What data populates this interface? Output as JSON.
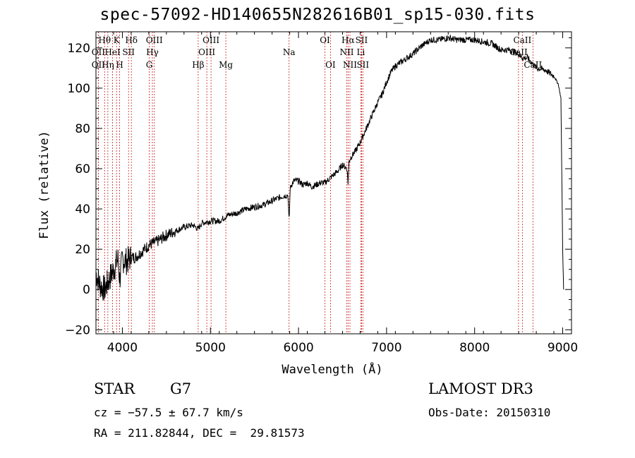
{
  "chart_data": {
    "type": "line",
    "title": "spec-57092-HD140655N282616B01_sp15-030.fits",
    "xlabel": "Wavelength (Å)",
    "ylabel": "Flux (relative)",
    "xlim": [
      3700,
      9100
    ],
    "ylim": [
      -22,
      128
    ],
    "xticks": [
      4000,
      5000,
      6000,
      7000,
      8000,
      9000
    ],
    "yticks": [
      -20,
      0,
      20,
      40,
      60,
      80,
      100,
      120
    ],
    "grid": false,
    "series": [
      {
        "name": "flux",
        "x": [
          3700,
          3750,
          3800,
          3850,
          3900,
          3950,
          3970,
          4000,
          4050,
          4100,
          4150,
          4200,
          4300,
          4400,
          4500,
          4600,
          4700,
          4800,
          4861,
          4900,
          5000,
          5100,
          5200,
          5300,
          5400,
          5500,
          5600,
          5700,
          5800,
          5880,
          5890,
          5896,
          5905,
          5920,
          5950,
          6000,
          6050,
          6100,
          6150,
          6200,
          6250,
          6300,
          6350,
          6400,
          6450,
          6500,
          6550,
          6563,
          6575,
          6600,
          6650,
          6700,
          6750,
          6800,
          6850,
          6900,
          6950,
          7000,
          7050,
          7100,
          7200,
          7300,
          7400,
          7500,
          7600,
          7700,
          7800,
          7900,
          8000,
          8100,
          8200,
          8300,
          8400,
          8500,
          8542,
          8600,
          8662,
          8700,
          8800,
          8900,
          8950,
          8980,
          9000,
          9010
        ],
        "y": [
          8,
          2,
          0,
          5,
          10,
          15,
          5,
          15,
          14,
          16,
          16,
          18,
          22,
          24,
          27,
          29,
          31,
          32,
          30,
          33,
          34,
          34,
          37,
          38,
          40,
          41,
          42,
          44,
          46,
          47,
          36,
          37,
          50,
          52,
          54,
          54,
          52,
          53,
          51,
          52,
          53,
          53,
          55,
          57,
          59,
          62,
          60,
          53,
          64,
          66,
          69,
          73,
          78,
          83,
          88,
          93,
          97,
          103,
          108,
          111,
          114,
          117,
          121,
          124,
          124,
          125,
          124,
          124,
          124,
          123,
          122,
          119,
          119,
          117,
          115,
          115,
          112,
          110,
          109,
          106,
          102,
          95,
          20,
          0
        ]
      }
    ],
    "lines": [
      {
        "name": "Hθ",
        "x": 3798,
        "row": 1
      },
      {
        "name": "OII",
        "x": 3727,
        "row": 2
      },
      {
        "name": "OII",
        "x": 3727,
        "row": 3
      },
      {
        "name": "K",
        "x": 3934,
        "row": 1
      },
      {
        "name": "HeI",
        "x": 3889,
        "row": 2
      },
      {
        "name": "Hη",
        "x": 3835,
        "row": 3
      },
      {
        "name": "Hδ",
        "x": 4102,
        "row": 1
      },
      {
        "name": "SII",
        "x": 4070,
        "row": 2
      },
      {
        "name": "H",
        "x": 3969,
        "row": 3
      },
      {
        "name": "OIII",
        "x": 4363,
        "row": 1
      },
      {
        "name": "Hγ",
        "x": 4341,
        "row": 2
      },
      {
        "name": "G",
        "x": 4305,
        "row": 3
      },
      {
        "name": "OIII",
        "x": 5007,
        "row": 1
      },
      {
        "name": "OIII",
        "x": 4959,
        "row": 2
      },
      {
        "name": "Hβ",
        "x": 4861,
        "row": 3
      },
      {
        "name": "Mg",
        "x": 5175,
        "row": 3
      },
      {
        "name": "Na",
        "x": 5893,
        "row": 2
      },
      {
        "name": "OI",
        "x": 6300,
        "row": 1
      },
      {
        "name": "OI",
        "x": 6363,
        "row": 3
      },
      {
        "name": "Hα",
        "x": 6563,
        "row": 1
      },
      {
        "name": "SII",
        "x": 6716,
        "row": 1
      },
      {
        "name": "NII",
        "x": 6548,
        "row": 2
      },
      {
        "name": "Li",
        "x": 6708,
        "row": 2
      },
      {
        "name": "NII",
        "x": 6584,
        "row": 3
      },
      {
        "name": "SII",
        "x": 6731,
        "row": 3
      },
      {
        "name": "CaII",
        "x": 8542,
        "row": 1
      },
      {
        "name": "CaII",
        "x": 8498,
        "row": 2
      },
      {
        "name": "CaII",
        "x": 8662,
        "row": 3
      }
    ]
  },
  "info": {
    "object_type": "STAR",
    "subclass": "G7",
    "survey": "LAMOST DR3",
    "cz": "cz = −57.5 ± 67.7 km/s",
    "obs_date": "Obs-Date: 20150310",
    "radec": "RA = 211.82844, DEC =  29.81573"
  }
}
